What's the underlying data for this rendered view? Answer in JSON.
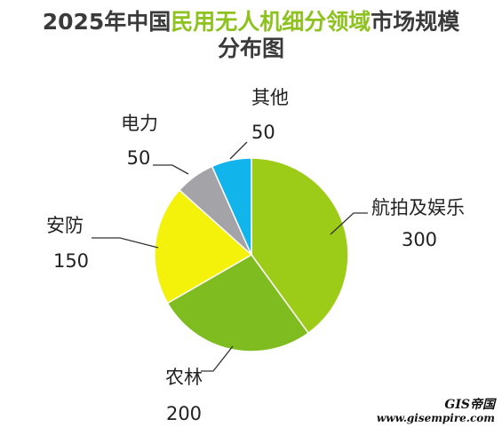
{
  "chart_data": {
    "type": "pie",
    "title_line1_pre": "2025年中国",
    "title_line1_highlight": "民用无人机细分领域",
    "title_line1_post": "市场规模",
    "title_line2": "分布图",
    "slices": [
      {
        "label": "航拍及娱乐",
        "value": 300,
        "color": "#9ccb18"
      },
      {
        "label": "农林",
        "value": 200,
        "color": "#7ebc20"
      },
      {
        "label": "安防",
        "value": 150,
        "color": "#f4f10a"
      },
      {
        "label": "电力",
        "value": 50,
        "color": "#a3a3a8"
      },
      {
        "label": "其他",
        "value": 50,
        "color": "#12b4ec"
      }
    ],
    "title_highlight_color": "#8dc21f"
  },
  "watermark": {
    "brand": "GIS帝国",
    "url": "www.gisempire.com"
  }
}
